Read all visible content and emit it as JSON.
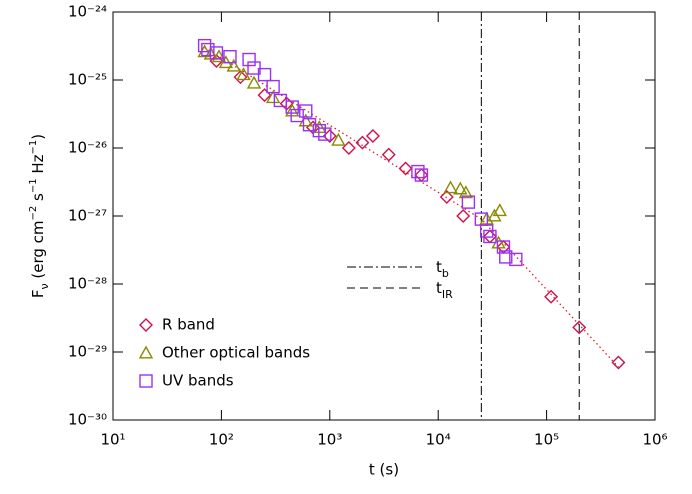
{
  "chart_data": {
    "type": "scatter",
    "xlabel": "t (s)",
    "ylabel": [
      {
        "text": "F"
      },
      {
        "text": "ν",
        "pos": "sub"
      },
      {
        "text": " (erg cm"
      },
      {
        "text": "−2",
        "pos": "sup"
      },
      {
        "text": " s"
      },
      {
        "text": "−1",
        "pos": "sup"
      },
      {
        "text": " Hz"
      },
      {
        "text": "−1",
        "pos": "sup"
      },
      {
        "text": ")"
      }
    ],
    "xscale": "log",
    "yscale": "log",
    "xlim": [
      10,
      1000000
    ],
    "ylim": [
      1e-30,
      1e-24
    ],
    "xticks": [
      {
        "value": 10,
        "label": "10¹"
      },
      {
        "value": 100,
        "label": "10²"
      },
      {
        "value": 1000,
        "label": "10³"
      },
      {
        "value": 10000,
        "label": "10⁴"
      },
      {
        "value": 100000,
        "label": "10⁵"
      },
      {
        "value": 1000000,
        "label": "10⁶"
      }
    ],
    "yticks": [
      {
        "value": 1e-30,
        "label": "10⁻³⁰"
      },
      {
        "value": 1e-29,
        "label": "10⁻²⁹"
      },
      {
        "value": 1e-28,
        "label": "10⁻²⁸"
      },
      {
        "value": 1e-27,
        "label": "10⁻²⁷"
      },
      {
        "value": 1e-26,
        "label": "10⁻²⁶"
      },
      {
        "value": 1e-25,
        "label": "10⁻²⁵"
      },
      {
        "value": 1e-24,
        "label": "10⁻²⁴"
      }
    ],
    "legend": "lower left",
    "series": [
      {
        "name": "R band",
        "color": "#d0104c",
        "marker": "diamond",
        "x": [
          90,
          150,
          250,
          400,
          700,
          1000,
          1500,
          2000,
          2500,
          3500,
          5000,
          7000,
          12000,
          17000,
          30000,
          40000,
          110000,
          200000,
          460000
        ],
        "values": [
          1.9e-25,
          1.1e-25,
          6e-26,
          4.5e-26,
          2e-26,
          1.5e-26,
          1e-26,
          1.2e-26,
          1.5e-26,
          8e-27,
          5e-27,
          4e-27,
          1.9e-27,
          1e-27,
          5e-28,
          3.5e-28,
          6.5e-29,
          2.3e-29,
          7e-30
        ]
      },
      {
        "name": "Other optical bands",
        "color": "#8a8a00",
        "marker": "triangle",
        "x": [
          70,
          80,
          95,
          110,
          130,
          160,
          200,
          300,
          450,
          600,
          800,
          1200,
          13000,
          16000,
          18000,
          28000,
          33000,
          37000,
          36000
        ],
        "values": [
          2.6e-25,
          2.4e-25,
          2.2e-25,
          1.8e-25,
          1.6e-25,
          1.2e-25,
          9e-26,
          5.5e-26,
          3.5e-26,
          2.5e-26,
          2e-26,
          1.3e-26,
          2.6e-27,
          2.5e-27,
          2.2e-27,
          9e-28,
          1e-27,
          1.2e-27,
          4e-28
        ]
      },
      {
        "name": "UV bands",
        "color": "#9b30f0",
        "marker": "square",
        "x": [
          70,
          75,
          90,
          120,
          180,
          200,
          250,
          300,
          350,
          450,
          500,
          600,
          650,
          800,
          900,
          6500,
          7000,
          19000,
          25000,
          28000,
          30000,
          40000,
          42000,
          52000
        ],
        "values": [
          3.2e-25,
          2.8e-25,
          2.5e-25,
          2.2e-25,
          2e-25,
          1.5e-25,
          1.2e-25,
          8e-26,
          5e-26,
          4e-26,
          3e-26,
          3.5e-26,
          2.2e-26,
          1.8e-26,
          1.6e-26,
          4.5e-27,
          4e-27,
          1.6e-27,
          9e-28,
          6e-28,
          5e-28,
          3.5e-28,
          2.5e-28,
          2.3e-28
        ]
      }
    ],
    "model": {
      "color": "#e02020",
      "style": "dotted",
      "x": [
        70,
        25000,
        460000
      ],
      "values": [
        3e-25,
        9e-28,
        6e-30
      ]
    },
    "vlines": [
      {
        "x": 25000,
        "style": "dashdot",
        "label": "t",
        "sub": "b"
      },
      {
        "x": 200000,
        "style": "dashed",
        "label": "t",
        "sub": "IR"
      }
    ]
  }
}
